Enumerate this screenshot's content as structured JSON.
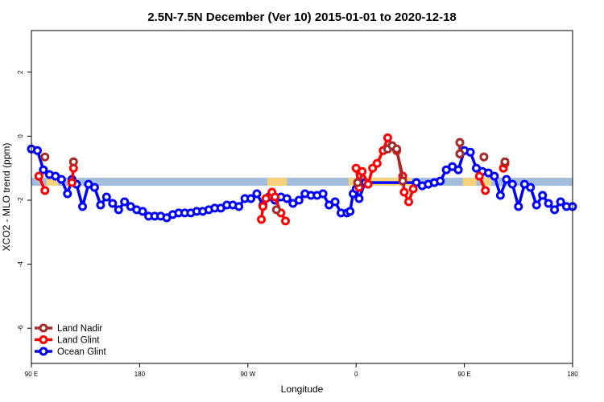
{
  "chart_data": {
    "type": "line",
    "title": "2.5N-7.5N December (Ver 10)   2015-01-01 to 2020-12-18",
    "xlabel": "Longitude",
    "ylabel": "XCO2 - MLO trend (ppm)",
    "xlim": [
      -90,
      270
    ],
    "ylim": [
      -7.1,
      3.3
    ],
    "x_ticks": [
      {
        "value": -90,
        "label": "90 E"
      },
      {
        "value": -18,
        "label": "180"
      },
      {
        "value": 54,
        "label": "90 W"
      },
      {
        "value": 126,
        "label": "0"
      },
      {
        "value": 198,
        "label": "90 E"
      },
      {
        "value": 270,
        "label": "180"
      }
    ],
    "y_ticks": [
      {
        "value": 2,
        "label": "2"
      },
      {
        "value": 0,
        "label": "0"
      },
      {
        "value": -2,
        "label": "-2"
      },
      {
        "value": -4,
        "label": "-4"
      },
      {
        "value": -6,
        "label": "-6"
      }
    ],
    "band": {
      "y_top": -1.3,
      "y_bottom": -1.55,
      "ocean_color": "#a3bddd",
      "land_color": "#f8d27a",
      "land_segments": [
        [
          -80,
          -72
        ],
        [
          -63,
          -59
        ],
        [
          67,
          80
        ],
        [
          121,
          125
        ],
        [
          127,
          129
        ],
        [
          133,
          163
        ],
        [
          197,
          206
        ],
        [
          211,
          216
        ]
      ]
    },
    "series": [
      {
        "name": "Land Nadir",
        "color": "#a52a2a",
        "x": [
          -81,
          -62,
          73,
          127,
          147,
          150,
          153,
          157,
          195,
          195,
          211,
          225
        ],
        "y": [
          -0.65,
          -0.8,
          -2.3,
          -1.45,
          -0.4,
          -0.3,
          -0.4,
          -1.4,
          -0.2,
          -0.55,
          -0.65,
          -0.8
        ],
        "segments": [
          [
            0,
            0
          ],
          [
            1,
            1
          ],
          [
            2,
            2
          ],
          [
            3,
            3
          ],
          [
            4,
            7
          ],
          [
            8,
            9
          ],
          [
            10,
            10
          ],
          [
            11,
            11
          ]
        ]
      },
      {
        "name": "Land Glint",
        "color": "#ff0000",
        "x": [
          -85,
          -81,
          -63,
          -62,
          63,
          64,
          66,
          70,
          72,
          76,
          79,
          126,
          128,
          130,
          134,
          137,
          140,
          144,
          147,
          150,
          153,
          157,
          158,
          161,
          164,
          195,
          195,
          208,
          212,
          224,
          225
        ],
        "y": [
          -1.25,
          -1.7,
          -1.45,
          -1.0,
          -2.6,
          -2.2,
          -1.95,
          -1.75,
          -1.9,
          -2.4,
          -2.65,
          -1.0,
          -1.6,
          -1.1,
          -1.5,
          -1.0,
          -0.85,
          -0.45,
          -0.05,
          -0.3,
          -0.45,
          -1.25,
          -1.75,
          -2.05,
          -1.65,
          -0.2,
          -0.55,
          -1.25,
          -1.7,
          -1.0,
          -0.85
        ],
        "segments": [
          [
            0,
            1
          ],
          [
            2,
            3
          ],
          [
            4,
            10
          ],
          [
            11,
            24
          ],
          [
            25,
            26
          ],
          [
            27,
            28
          ],
          [
            29,
            30
          ]
        ]
      },
      {
        "name": "Ocean Glint",
        "color": "#0000ff",
        "x": [
          -90,
          -86,
          -82,
          -78,
          -74,
          -70,
          -66,
          -63,
          -60,
          -56,
          -52,
          -48,
          -44,
          -40,
          -36,
          -32,
          -28,
          -24,
          -20,
          -16,
          -12,
          -8,
          -4,
          0,
          4,
          8,
          12,
          16,
          20,
          24,
          28,
          32,
          36,
          40,
          44,
          48,
          52,
          56,
          60,
          64,
          68,
          72,
          76,
          80,
          84,
          88,
          92,
          96,
          100,
          104,
          108,
          112,
          116,
          120,
          122,
          124,
          126,
          128,
          132,
          166,
          170,
          174,
          178,
          182,
          186,
          190,
          194,
          198,
          202,
          206,
          210,
          214,
          218,
          222,
          226,
          230,
          234,
          238,
          242,
          246,
          250,
          254,
          258,
          262,
          266,
          270
        ],
        "y": [
          -0.4,
          -0.45,
          -1.05,
          -1.2,
          -1.25,
          -1.35,
          -1.8,
          -1.35,
          -1.5,
          -2.2,
          -1.5,
          -1.6,
          -2.15,
          -1.9,
          -2.1,
          -2.3,
          -2.05,
          -2.2,
          -2.3,
          -2.35,
          -2.5,
          -2.5,
          -2.5,
          -2.55,
          -2.45,
          -2.4,
          -2.4,
          -2.4,
          -2.35,
          -2.35,
          -2.3,
          -2.25,
          -2.25,
          -2.15,
          -2.15,
          -2.2,
          -1.95,
          -1.95,
          -1.8,
          -2.15,
          -1.9,
          -2.0,
          -1.9,
          -1.95,
          -2.1,
          -2.0,
          -1.8,
          -1.85,
          -1.85,
          -1.8,
          -2.15,
          -2.05,
          -2.4,
          -2.4,
          -2.35,
          -1.8,
          -1.65,
          -1.95,
          -1.45,
          -1.45,
          -1.55,
          -1.5,
          -1.45,
          -1.4,
          -1.05,
          -0.95,
          -1.05,
          -0.45,
          -0.5,
          -1.0,
          -1.1,
          -1.15,
          -1.25,
          -1.85,
          -1.35,
          -1.5,
          -2.2,
          -1.5,
          -1.6,
          -2.15,
          -1.85,
          -2.1,
          -2.3,
          -2.05,
          -2.2,
          -2.2
        ],
        "segments": [
          [
            0,
            85
          ]
        ]
      }
    ],
    "legend": {
      "placement": "bottom-left",
      "entries": [
        "Land Nadir",
        "Land Glint",
        "Ocean Glint"
      ]
    },
    "grid": false
  }
}
